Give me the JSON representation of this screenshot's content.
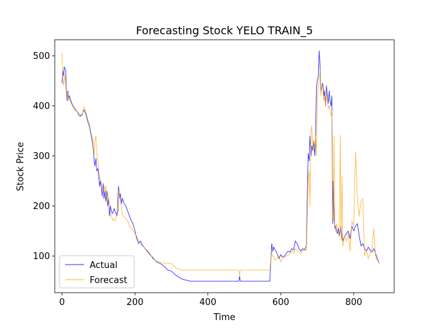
{
  "chart_data": {
    "type": "line",
    "title": "Forecasting Stock YELO TRAIN_5",
    "xlabel": "Time",
    "ylabel": "Stock Price",
    "xlim": [
      -20,
      911
    ],
    "ylim": [
      27,
      532
    ],
    "xticks": [
      0,
      200,
      400,
      600,
      800
    ],
    "yticks": [
      100,
      200,
      300,
      400,
      500
    ],
    "legend_position": "lower-left",
    "series": [
      {
        "name": "Actual",
        "color": "#0000ff",
        "x": [
          0,
          2,
          4,
          6,
          8,
          10,
          12,
          14,
          16,
          18,
          20,
          25,
          30,
          35,
          40,
          45,
          50,
          55,
          60,
          65,
          70,
          75,
          80,
          85,
          88,
          90,
          93,
          95,
          98,
          100,
          103,
          105,
          108,
          110,
          113,
          115,
          118,
          120,
          123,
          125,
          128,
          130,
          133,
          135,
          138,
          140,
          143,
          145,
          148,
          150,
          153,
          155,
          158,
          160,
          163,
          165,
          168,
          170,
          175,
          180,
          185,
          190,
          195,
          200,
          205,
          210,
          215,
          220,
          225,
          230,
          235,
          240,
          245,
          250,
          255,
          260,
          270,
          280,
          290,
          300,
          310,
          320,
          330,
          340,
          350,
          360,
          400,
          450,
          485,
          487,
          489,
          500,
          540,
          570,
          575,
          578,
          580,
          585,
          590,
          595,
          600,
          605,
          610,
          615,
          620,
          625,
          630,
          635,
          640,
          645,
          650,
          655,
          660,
          665,
          670,
          675,
          678,
          680,
          683,
          685,
          688,
          690,
          693,
          695,
          698,
          700,
          703,
          705,
          708,
          710,
          713,
          715,
          718,
          720,
          723,
          725,
          728,
          730,
          733,
          735,
          738,
          740,
          742,
          744,
          746,
          748,
          750,
          753,
          755,
          758,
          760,
          763,
          765,
          768,
          770,
          775,
          780,
          785,
          790,
          795,
          800,
          805,
          810,
          815,
          820,
          825,
          830,
          835,
          840,
          845,
          850,
          855,
          860,
          865,
          868,
          870
        ],
        "y": [
          445,
          470,
          460,
          478,
          475,
          470,
          430,
          410,
          430,
          415,
          420,
          408,
          400,
          395,
          390,
          385,
          380,
          383,
          392,
          385,
          370,
          360,
          340,
          320,
          290,
          280,
          295,
          270,
          275,
          265,
          240,
          250,
          235,
          220,
          245,
          215,
          230,
          210,
          230,
          200,
          215,
          180,
          200,
          190,
          185,
          188,
          195,
          190,
          185,
          180,
          190,
          240,
          215,
          225,
          205,
          215,
          210,
          205,
          200,
          190,
          180,
          170,
          165,
          150,
          135,
          125,
          130,
          122,
          118,
          113,
          110,
          105,
          100,
          95,
          92,
          88,
          85,
          80,
          72,
          70,
          63,
          58,
          54,
          52,
          50,
          50,
          50,
          50,
          50,
          60,
          50,
          50,
          50,
          50,
          125,
          110,
          118,
          112,
          105,
          95,
          103,
          98,
          100,
          105,
          110,
          108,
          115,
          112,
          130,
          125,
          115,
          110,
          115,
          112,
          120,
          305,
          290,
          340,
          300,
          320,
          310,
          330,
          300,
          330,
          440,
          450,
          460,
          510,
          480,
          430,
          440,
          445,
          420,
          430,
          400,
          440,
          420,
          405,
          430,
          410,
          400,
          420,
          165,
          250,
          180,
          155,
          160,
          150,
          145,
          155,
          140,
          150,
          160,
          135,
          130,
          140,
          145,
          150,
          135,
          160,
          150,
          160,
          165,
          140,
          120,
          125,
          115,
          110,
          118,
          112,
          108,
          115,
          105,
          95,
          90,
          85
        ]
      },
      {
        "name": "Forecast",
        "color": "#ffa500",
        "x": [
          0,
          2,
          4,
          6,
          8,
          10,
          12,
          14,
          16,
          18,
          20,
          25,
          30,
          35,
          40,
          45,
          50,
          55,
          60,
          65,
          70,
          75,
          80,
          85,
          88,
          90,
          93,
          95,
          98,
          100,
          103,
          105,
          108,
          110,
          113,
          115,
          118,
          120,
          123,
          125,
          128,
          130,
          133,
          135,
          138,
          140,
          143,
          145,
          148,
          150,
          153,
          155,
          158,
          160,
          163,
          165,
          168,
          170,
          175,
          180,
          185,
          190,
          195,
          200,
          205,
          210,
          215,
          220,
          225,
          230,
          235,
          240,
          245,
          250,
          255,
          260,
          270,
          280,
          290,
          300,
          310,
          320,
          330,
          340,
          350,
          360,
          400,
          450,
          485,
          487,
          489,
          500,
          540,
          570,
          575,
          578,
          580,
          585,
          590,
          595,
          600,
          605,
          610,
          615,
          620,
          625,
          630,
          635,
          640,
          645,
          650,
          655,
          660,
          665,
          670,
          675,
          678,
          680,
          683,
          685,
          688,
          690,
          693,
          695,
          698,
          700,
          703,
          705,
          708,
          710,
          713,
          715,
          718,
          720,
          723,
          725,
          728,
          730,
          733,
          735,
          738,
          740,
          742,
          744,
          746,
          748,
          750,
          753,
          755,
          758,
          760,
          763,
          765,
          768,
          770,
          775,
          780,
          785,
          790,
          795,
          800,
          805,
          810,
          815,
          820,
          825,
          830,
          835,
          840,
          845,
          850,
          855,
          860,
          865,
          868,
          870
        ],
        "y": [
          505,
          460,
          440,
          450,
          462,
          445,
          420,
          415,
          425,
          410,
          415,
          405,
          398,
          390,
          392,
          380,
          378,
          380,
          398,
          390,
          375,
          365,
          345,
          330,
          300,
          330,
          340,
          310,
          290,
          280,
          255,
          255,
          245,
          230,
          235,
          240,
          230,
          240,
          210,
          225,
          215,
          195,
          185,
          180,
          172,
          175,
          172,
          170,
          175,
          185,
          225,
          230,
          220,
          205,
          200,
          185,
          180,
          178,
          175,
          170,
          160,
          155,
          150,
          145,
          140,
          130,
          125,
          120,
          118,
          112,
          108,
          103,
          100,
          98,
          92,
          90,
          88,
          86,
          86,
          85,
          78,
          74,
          72,
          72,
          72,
          72,
          72,
          72,
          72,
          62,
          72,
          72,
          72,
          72,
          110,
          100,
          98,
          92,
          95,
          100,
          88,
          95,
          98,
          100,
          102,
          105,
          110,
          105,
          115,
          112,
          108,
          105,
          110,
          115,
          110,
          250,
          270,
          200,
          350,
          360,
          310,
          330,
          320,
          340,
          300,
          420,
          440,
          450,
          470,
          420,
          445,
          435,
          410,
          420,
          400,
          430,
          410,
          395,
          400,
          390,
          380,
          390,
          180,
          170,
          340,
          160,
          150,
          165,
          155,
          145,
          140,
          342,
          130,
          260,
          120,
          140,
          130,
          145,
          110,
          170,
          160,
          308,
          215,
          180,
          210,
          215,
          100,
          110,
          95,
          105,
          115,
          155,
          100,
          90,
          90,
          85
        ]
      }
    ]
  }
}
